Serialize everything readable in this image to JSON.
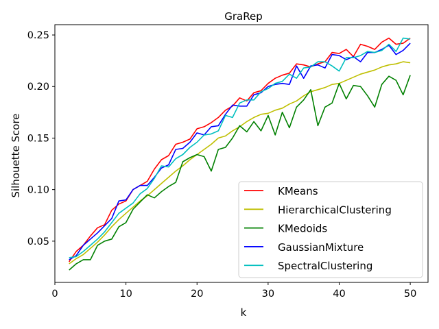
{
  "chart_data": {
    "type": "line",
    "title": "GraRep",
    "xlabel": "k",
    "ylabel": "Silhouette Score",
    "xlim": [
      0,
      52.5
    ],
    "ylim": [
      0.01,
      0.26
    ],
    "xticks": [
      0,
      10,
      20,
      30,
      40,
      50
    ],
    "xtick_labels": [
      "0",
      "10",
      "20",
      "30",
      "40",
      "50"
    ],
    "yticks": [
      0.05,
      0.1,
      0.15,
      0.2,
      0.25
    ],
    "ytick_labels": [
      "0.05",
      "0.10",
      "0.15",
      "0.20",
      "0.25"
    ],
    "grid": false,
    "legend_position": "lower-right",
    "x": [
      2,
      3,
      4,
      5,
      6,
      7,
      8,
      9,
      10,
      11,
      12,
      13,
      14,
      15,
      16,
      17,
      18,
      19,
      20,
      21,
      22,
      23,
      24,
      25,
      26,
      27,
      28,
      29,
      30,
      31,
      32,
      33,
      34,
      35,
      36,
      37,
      38,
      39,
      40,
      41,
      42,
      43,
      44,
      45,
      46,
      47,
      48,
      49,
      50
    ],
    "series": [
      {
        "name": "KMeans",
        "color": "#ff0000",
        "values": [
          0.03,
          0.04,
          0.046,
          0.055,
          0.063,
          0.066,
          0.08,
          0.086,
          0.089,
          0.1,
          0.104,
          0.108,
          0.12,
          0.129,
          0.133,
          0.144,
          0.146,
          0.149,
          0.159,
          0.161,
          0.165,
          0.17,
          0.177,
          0.181,
          0.189,
          0.186,
          0.194,
          0.196,
          0.203,
          0.208,
          0.211,
          0.213,
          0.222,
          0.221,
          0.219,
          0.222,
          0.224,
          0.233,
          0.232,
          0.236,
          0.229,
          0.241,
          0.239,
          0.236,
          0.243,
          0.247,
          0.241,
          0.242,
          0.247
        ]
      },
      {
        "name": "HierarchicalClustering",
        "color": "#bfbf00",
        "values": [
          0.028,
          0.033,
          0.037,
          0.043,
          0.049,
          0.056,
          0.064,
          0.071,
          0.077,
          0.083,
          0.089,
          0.094,
          0.1,
          0.106,
          0.112,
          0.118,
          0.123,
          0.129,
          0.134,
          0.139,
          0.144,
          0.15,
          0.152,
          0.157,
          0.161,
          0.166,
          0.17,
          0.173,
          0.174,
          0.177,
          0.179,
          0.183,
          0.186,
          0.191,
          0.195,
          0.197,
          0.199,
          0.202,
          0.203,
          0.206,
          0.209,
          0.212,
          0.214,
          0.216,
          0.219,
          0.221,
          0.222,
          0.224,
          0.223
        ]
      },
      {
        "name": "KMedoids",
        "color": "#008000",
        "values": [
          0.022,
          0.028,
          0.032,
          0.032,
          0.046,
          0.05,
          0.052,
          0.064,
          0.068,
          0.081,
          0.088,
          0.095,
          0.092,
          0.098,
          0.103,
          0.107,
          0.127,
          0.131,
          0.134,
          0.132,
          0.118,
          0.139,
          0.141,
          0.15,
          0.162,
          0.156,
          0.166,
          0.157,
          0.172,
          0.153,
          0.175,
          0.16,
          0.18,
          0.187,
          0.197,
          0.162,
          0.18,
          0.184,
          0.203,
          0.188,
          0.201,
          0.2,
          0.191,
          0.18,
          0.202,
          0.21,
          0.206,
          0.192,
          0.211
        ]
      },
      {
        "name": "GaussianMixture",
        "color": "#0000ff",
        "values": [
          0.032,
          0.036,
          0.046,
          0.052,
          0.058,
          0.065,
          0.072,
          0.089,
          0.09,
          0.1,
          0.104,
          0.104,
          0.112,
          0.121,
          0.124,
          0.139,
          0.14,
          0.146,
          0.155,
          0.153,
          0.161,
          0.162,
          0.173,
          0.182,
          0.181,
          0.181,
          0.192,
          0.194,
          0.2,
          0.202,
          0.203,
          0.202,
          0.22,
          0.208,
          0.22,
          0.221,
          0.218,
          0.231,
          0.23,
          0.226,
          0.229,
          0.224,
          0.233,
          0.233,
          0.236,
          0.24,
          0.231,
          0.235,
          0.242
        ]
      },
      {
        "name": "SpectralClustering",
        "color": "#00bfbf",
        "values": [
          0.034,
          0.035,
          0.04,
          0.046,
          0.052,
          0.059,
          0.068,
          0.077,
          0.082,
          0.087,
          0.096,
          0.101,
          0.111,
          0.123,
          0.122,
          0.13,
          0.134,
          0.141,
          0.146,
          0.153,
          0.154,
          0.157,
          0.172,
          0.17,
          0.184,
          0.187,
          0.187,
          0.195,
          0.198,
          0.203,
          0.205,
          0.212,
          0.208,
          0.218,
          0.219,
          0.224,
          0.224,
          0.22,
          0.215,
          0.228,
          0.228,
          0.23,
          0.234,
          0.233,
          0.235,
          0.241,
          0.234,
          0.247,
          0.246
        ]
      }
    ]
  }
}
